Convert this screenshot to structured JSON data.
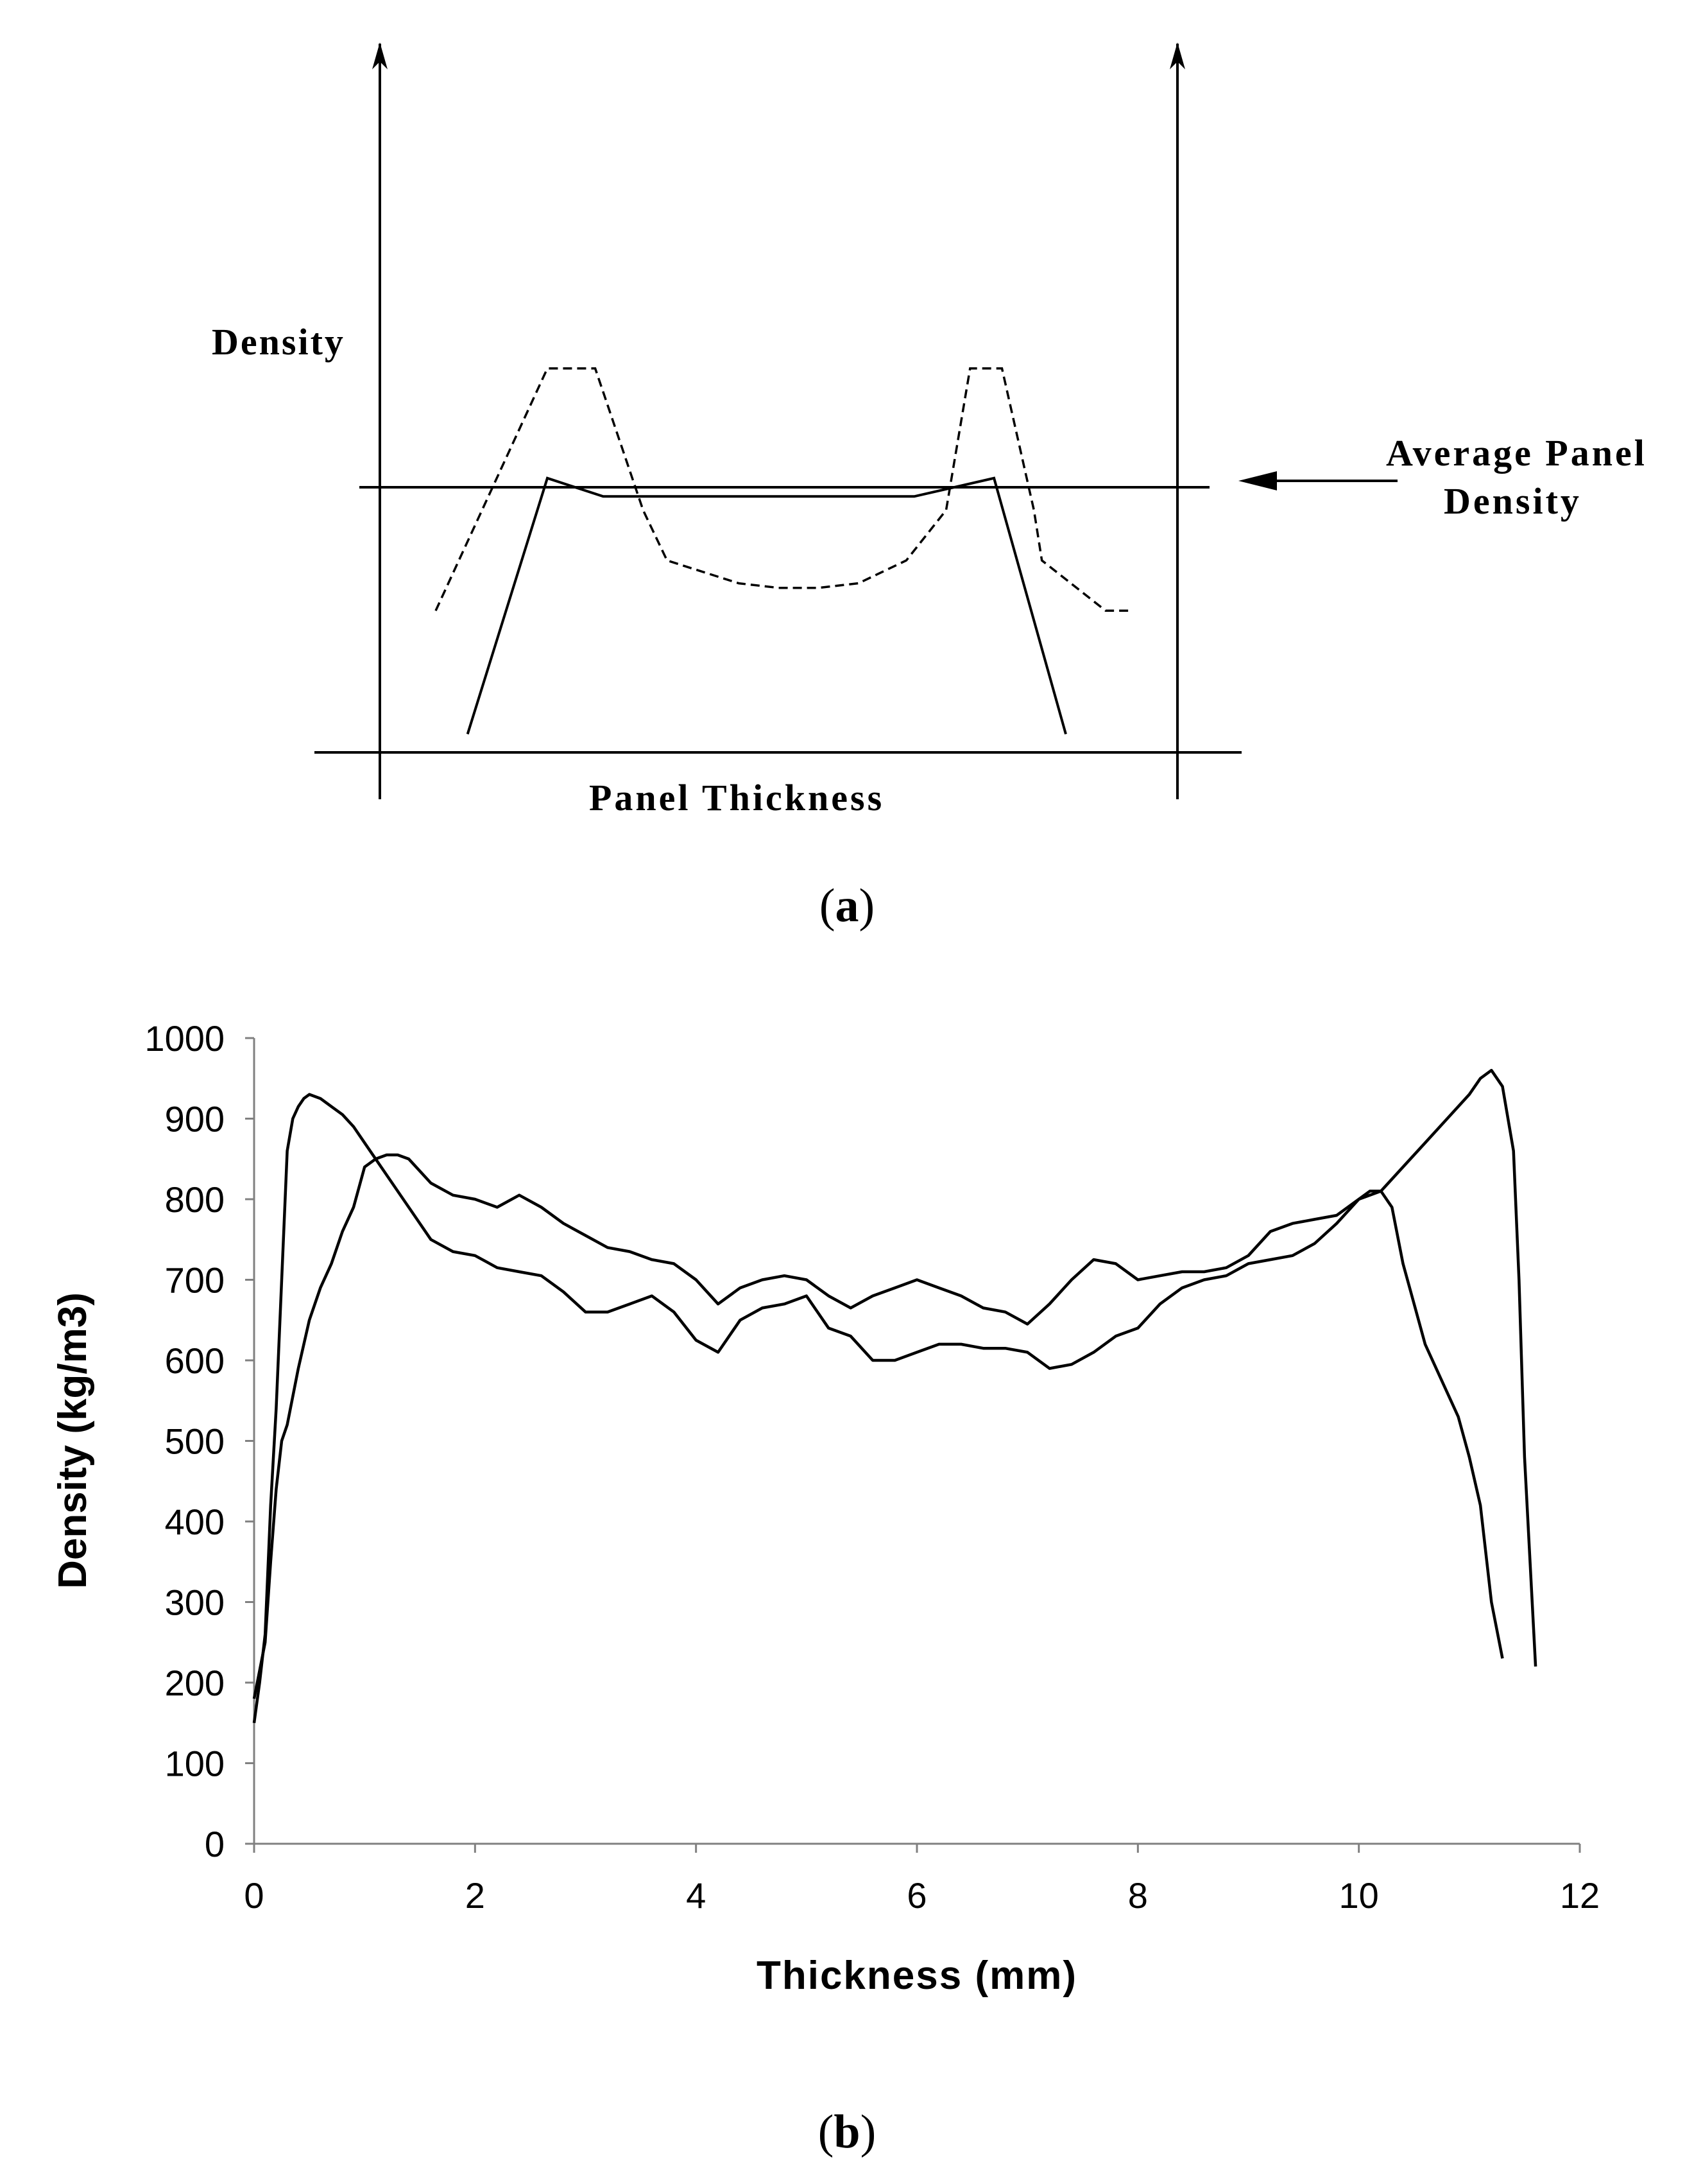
{
  "chart_data": [
    {
      "type": "line",
      "panel": "a",
      "caption_letter": "a",
      "ylabel": "Density",
      "xlabel": "Panel Thickness",
      "annotation_line1": "Average Panel",
      "annotation_line2": "Density",
      "schematic": true,
      "x_range": [
        0,
        1
      ],
      "y_range": [
        0,
        1
      ],
      "average_density": 0.58,
      "series": [
        {
          "name": "dashed-profile",
          "style": "dashed",
          "x": [
            0.07,
            0.21,
            0.27,
            0.33,
            0.36,
            0.45,
            0.5,
            0.55,
            0.6,
            0.66,
            0.71,
            0.74,
            0.78,
            0.82,
            0.83,
            0.91,
            0.94
          ],
          "y": [
            0.31,
            0.84,
            0.84,
            0.53,
            0.42,
            0.37,
            0.36,
            0.36,
            0.37,
            0.42,
            0.53,
            0.84,
            0.84,
            0.53,
            0.42,
            0.31,
            0.31
          ]
        },
        {
          "name": "solid-profile",
          "style": "solid",
          "x": [
            0.11,
            0.21,
            0.28,
            0.67,
            0.77,
            0.86
          ],
          "y": [
            0.04,
            0.6,
            0.56,
            0.56,
            0.6,
            0.04
          ]
        }
      ]
    },
    {
      "type": "line",
      "panel": "b",
      "caption_letter": "b",
      "xlabel": "Thickness (mm)",
      "ylabel": "Density (kg/m3)",
      "xlim": [
        0,
        12
      ],
      "ylim": [
        0,
        1000
      ],
      "xticks": [
        "0",
        "2",
        "4",
        "6",
        "8",
        "10",
        "12"
      ],
      "yticks": [
        "0",
        "100",
        "200",
        "300",
        "400",
        "500",
        "600",
        "700",
        "800",
        "900",
        "1000"
      ],
      "grid": false,
      "series": [
        {
          "name": "panel-1",
          "x": [
            0.0,
            0.05,
            0.1,
            0.15,
            0.2,
            0.25,
            0.3,
            0.35,
            0.4,
            0.45,
            0.5,
            0.6,
            0.7,
            0.8,
            0.9,
            1.0,
            1.2,
            1.4,
            1.6,
            1.8,
            2.0,
            2.2,
            2.4,
            2.6,
            2.8,
            3.0,
            3.2,
            3.4,
            3.6,
            3.8,
            4.0,
            4.2,
            4.4,
            4.6,
            4.8,
            5.0,
            5.2,
            5.4,
            5.6,
            5.8,
            6.0,
            6.2,
            6.4,
            6.6,
            6.8,
            7.0,
            7.2,
            7.4,
            7.6,
            7.8,
            8.0,
            8.2,
            8.4,
            8.6,
            8.8,
            9.0,
            9.2,
            9.4,
            9.6,
            9.8,
            10.0,
            10.1,
            10.2,
            10.3,
            10.4,
            10.5,
            10.6,
            10.7,
            10.8,
            10.9,
            11.0,
            11.1,
            11.2,
            11.3
          ],
          "y": [
            150,
            200,
            260,
            420,
            540,
            700,
            860,
            900,
            915,
            925,
            930,
            925,
            915,
            905,
            890,
            870,
            830,
            790,
            750,
            735,
            730,
            715,
            710,
            705,
            685,
            660,
            660,
            670,
            680,
            660,
            625,
            610,
            650,
            665,
            670,
            680,
            640,
            630,
            600,
            600,
            610,
            620,
            620,
            615,
            615,
            610,
            590,
            595,
            610,
            630,
            640,
            670,
            690,
            700,
            705,
            720,
            725,
            730,
            745,
            770,
            800,
            810,
            810,
            790,
            720,
            670,
            620,
            590,
            560,
            530,
            480,
            420,
            300,
            230
          ]
        },
        {
          "name": "panel-2",
          "x": [
            0.0,
            0.1,
            0.15,
            0.2,
            0.25,
            0.3,
            0.4,
            0.5,
            0.6,
            0.7,
            0.8,
            0.9,
            1.0,
            1.1,
            1.2,
            1.3,
            1.4,
            1.6,
            1.8,
            2.0,
            2.2,
            2.4,
            2.6,
            2.8,
            3.0,
            3.2,
            3.4,
            3.6,
            3.8,
            4.0,
            4.2,
            4.4,
            4.6,
            4.8,
            5.0,
            5.2,
            5.4,
            5.6,
            5.8,
            6.0,
            6.2,
            6.4,
            6.6,
            6.8,
            7.0,
            7.2,
            7.4,
            7.6,
            7.8,
            8.0,
            8.2,
            8.4,
            8.6,
            8.8,
            9.0,
            9.2,
            9.4,
            9.6,
            9.8,
            10.0,
            10.2,
            10.4,
            10.6,
            10.8,
            11.0,
            11.1,
            11.2,
            11.3,
            11.4,
            11.45,
            11.5,
            11.55,
            11.6
          ],
          "y": [
            180,
            250,
            350,
            440,
            500,
            520,
            590,
            650,
            690,
            720,
            760,
            790,
            840,
            850,
            855,
            855,
            850,
            820,
            805,
            800,
            790,
            805,
            790,
            770,
            755,
            740,
            735,
            725,
            720,
            700,
            670,
            690,
            700,
            705,
            700,
            680,
            665,
            680,
            690,
            700,
            690,
            680,
            665,
            660,
            645,
            670,
            700,
            725,
            720,
            700,
            705,
            710,
            710,
            715,
            730,
            760,
            770,
            775,
            780,
            800,
            810,
            840,
            870,
            900,
            930,
            950,
            960,
            940,
            860,
            700,
            480,
            350,
            220
          ]
        }
      ]
    }
  ]
}
